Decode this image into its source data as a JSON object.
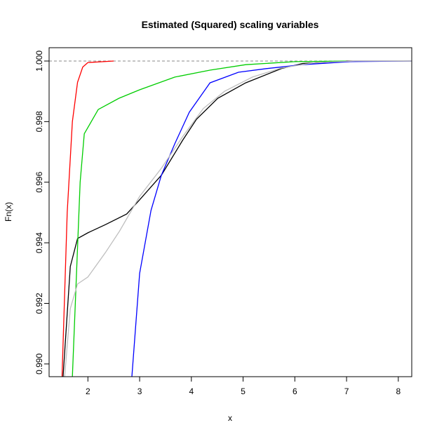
{
  "chart_data": {
    "type": "line",
    "title": "Estimated (Squared) scaling variables",
    "x_label": "x",
    "y_label": "Fn(x)",
    "xlim": [
      1.25,
      8.26
    ],
    "ylim": [
      0.98958,
      1.00044
    ],
    "xticks": [
      2,
      3,
      4,
      5,
      6,
      7,
      8
    ],
    "yticks": [
      {
        "value": 0.99,
        "label": "0.990"
      },
      {
        "value": 0.992,
        "label": "0.992"
      },
      {
        "value": 0.994,
        "label": "0.994"
      },
      {
        "value": 0.996,
        "label": "0.996"
      },
      {
        "value": 0.998,
        "label": "0.998"
      },
      {
        "value": 1.0,
        "label": "1.000"
      }
    ],
    "hlines": [
      1.0
    ],
    "series": [
      {
        "color": "#000000",
        "x": [
          1.52,
          1.66,
          1.8,
          2.0,
          2.34,
          2.75,
          3.0,
          3.42,
          3.83,
          4.1,
          4.51,
          5.05,
          5.74,
          6.15,
          7.0,
          8.26
        ],
        "values": [
          0.98958,
          0.99322,
          0.99414,
          0.99433,
          0.9946,
          0.99495,
          0.99542,
          0.99623,
          0.99738,
          0.99808,
          0.99877,
          0.99928,
          0.99975,
          0.99992,
          1.0,
          1.0
        ]
      },
      {
        "color": "#ff0000",
        "x": [
          1.5,
          1.6,
          1.7,
          1.8,
          1.9,
          2.0,
          2.5
        ],
        "values": [
          0.98958,
          0.995,
          0.998,
          0.9993,
          0.9998,
          0.99995,
          1.0
        ]
      },
      {
        "color": "#00cd00",
        "x": [
          1.7,
          1.78,
          1.85,
          1.93,
          2.2,
          2.6,
          3.0,
          3.68,
          4.36,
          5.05,
          6.0,
          7.0
        ],
        "values": [
          0.98958,
          0.993,
          0.996,
          0.9976,
          0.9984,
          0.99877,
          0.99905,
          0.99947,
          0.9997,
          0.99988,
          0.99998,
          1.0
        ]
      },
      {
        "color": "#0000ff",
        "x": [
          2.85,
          3.0,
          3.22,
          3.42,
          3.68,
          3.96,
          4.36,
          4.91,
          5.45,
          6.15,
          7.07,
          8.26
        ],
        "values": [
          0.98958,
          0.99299,
          0.99507,
          0.99623,
          0.99727,
          0.99831,
          0.99928,
          0.99963,
          0.99975,
          0.99988,
          0.99998,
          1.0
        ]
      },
      {
        "color": "#bebebe",
        "x": [
          1.55,
          1.66,
          1.8,
          2.0,
          2.34,
          2.61,
          3.0,
          3.42,
          3.83,
          4.23,
          4.64,
          5.18,
          5.74,
          6.4,
          7.17,
          8.26
        ],
        "values": [
          0.98958,
          0.99183,
          0.99264,
          0.99287,
          0.99368,
          0.99438,
          0.99553,
          0.99646,
          0.9975,
          0.99843,
          0.999,
          0.99947,
          0.99977,
          0.99995,
          1.0,
          1.0
        ]
      }
    ]
  }
}
